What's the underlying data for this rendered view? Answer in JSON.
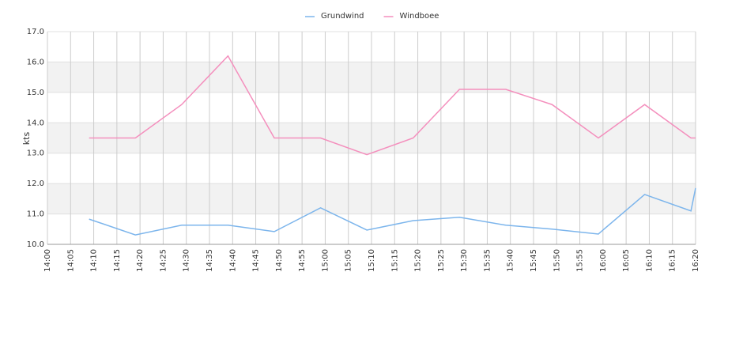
{
  "chart_data": {
    "type": "line",
    "y_label": "kts",
    "x": [
      "14:09",
      "14:19",
      "14:29",
      "14:39",
      "14:49",
      "14:59",
      "15:09",
      "15:19",
      "15:29",
      "15:39",
      "15:49",
      "15:59",
      "16:09",
      "16:19",
      "16:20"
    ],
    "series": [
      {
        "name": "Grundwind",
        "color": "#7cb5ec",
        "values": [
          10.83,
          10.31,
          10.63,
          10.63,
          10.42,
          11.2,
          10.47,
          10.78,
          10.89,
          10.63,
          10.5,
          10.34,
          11.64,
          11.1,
          11.85
        ]
      },
      {
        "name": "Windboee",
        "color": "#f48fbd",
        "values": [
          13.5,
          13.5,
          14.6,
          16.2,
          13.5,
          13.5,
          12.95,
          13.5,
          15.1,
          15.1,
          14.6,
          13.5,
          14.6,
          13.5,
          13.5
        ]
      }
    ],
    "xlim": [
      "14:00",
      "16:20"
    ],
    "xticks": [
      "14:00",
      "14:05",
      "14:10",
      "14:15",
      "14:20",
      "14:25",
      "14:30",
      "14:35",
      "14:40",
      "14:45",
      "14:50",
      "14:55",
      "15:00",
      "15:05",
      "15:10",
      "15:15",
      "15:20",
      "15:25",
      "15:30",
      "15:35",
      "15:40",
      "15:45",
      "15:50",
      "15:55",
      "16:00",
      "16:05",
      "16:10",
      "16:15",
      "16:20"
    ],
    "ylim": [
      10,
      17
    ],
    "yticks": [
      {
        "value": 10,
        "label": "10.0"
      },
      {
        "value": 11,
        "label": "11.0"
      },
      {
        "value": 12,
        "label": "12.0"
      },
      {
        "value": 13,
        "label": "13.0"
      },
      {
        "value": 14,
        "label": "14.0"
      },
      {
        "value": 15,
        "label": "15.0"
      },
      {
        "value": 16,
        "label": "16.0"
      },
      {
        "value": 17,
        "label": "17.0"
      }
    ],
    "grid": true,
    "legend": "top"
  }
}
